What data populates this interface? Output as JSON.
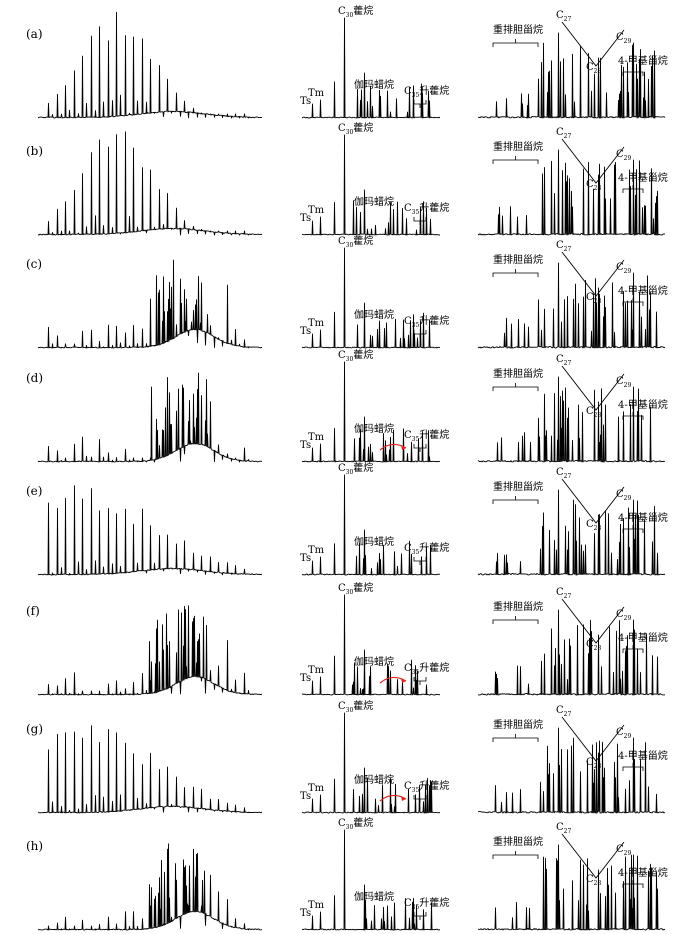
{
  "chart_data": {
    "type": "figure-grid",
    "rows": [
      {
        "label": "(a)",
        "panels": {
          "nalkane": {
            "type": "chromatogram"
          },
          "hopane": {
            "type": "chromatogram",
            "labels": {
              "main": "C30藿烷",
              "ts": "Ts",
              "tm": "Tm",
              "gam": "伽玛蜡烷",
              "homo": "C35升藿烷"
            }
          },
          "sterane": {
            "type": "chromatogram",
            "labels": {
              "dia": "重排胆甾烷",
              "c27": "C27",
              "c28": "C28",
              "c29": "C29",
              "me4": "4-甲基甾烷"
            }
          }
        }
      },
      {
        "label": "(b)",
        "panels": {
          "nalkane": {
            "type": "chromatogram"
          },
          "hopane": {
            "type": "chromatogram",
            "labels": {
              "main": "C30藿烷",
              "ts": "Ts",
              "tm": "Tm",
              "gam": "伽玛蜡烷",
              "homo": "C35升藿烷"
            }
          },
          "sterane": {
            "type": "chromatogram",
            "labels": {
              "dia": "重排胆甾烷",
              "c27": "C27",
              "c28": "C28",
              "c29": "C29",
              "me4": "4-甲基甾烷"
            }
          }
        }
      },
      {
        "label": "(c)",
        "panels": {
          "nalkane": {
            "type": "chromatogram"
          },
          "hopane": {
            "type": "chromatogram",
            "labels": {
              "main": "C30藿烷",
              "ts": "Ts",
              "tm": "Tm",
              "gam": "伽玛蜡烷",
              "homo": "C35升藿烷"
            }
          },
          "sterane": {
            "type": "chromatogram",
            "labels": {
              "dia": "重排胆甾烷",
              "c27": "C27",
              "c28": "C28",
              "c29": "C29",
              "me4": "4-甲基甾烷"
            }
          }
        }
      },
      {
        "label": "(d)",
        "panels": {
          "nalkane": {
            "type": "chromatogram"
          },
          "hopane": {
            "type": "chromatogram",
            "labels": {
              "main": "C30藿烷",
              "ts": "Ts",
              "tm": "Tm",
              "gam": "伽玛蜡烷",
              "homo": "C35升藿烷"
            }
          },
          "sterane": {
            "type": "chromatogram",
            "labels": {
              "dia": "重排胆甾烷",
              "c27": "C27",
              "c28": "C28",
              "c29": "C29",
              "me4": "4-甲基甾烷"
            }
          }
        }
      },
      {
        "label": "(e)",
        "panels": {
          "nalkane": {
            "type": "chromatogram"
          },
          "hopane": {
            "type": "chromatogram",
            "labels": {
              "main": "C30藿烷",
              "ts": "Ts",
              "tm": "Tm",
              "gam": "伽玛蜡烷",
              "homo": "C35升藿烷"
            }
          },
          "sterane": {
            "type": "chromatogram",
            "labels": {
              "dia": "重排胆甾烷",
              "c27": "C27",
              "c28": "C28",
              "c29": "C29",
              "me4": "4-甲基甾烷"
            }
          }
        }
      },
      {
        "label": "(f)",
        "panels": {
          "nalkane": {
            "type": "chromatogram"
          },
          "hopane": {
            "type": "chromatogram",
            "labels": {
              "main": "C30藿烷",
              "ts": "Ts",
              "tm": "Tm",
              "gam": "伽玛蜡烷",
              "homo": "C35升藿烷"
            }
          },
          "sterane": {
            "type": "chromatogram",
            "labels": {
              "dia": "重排胆甾烷",
              "c27": "C27",
              "c28": "C28",
              "c29": "C29",
              "me4": "4-甲基甾烷"
            }
          }
        }
      },
      {
        "label": "(g)",
        "panels": {
          "nalkane": {
            "type": "chromatogram"
          },
          "hopane": {
            "type": "chromatogram",
            "labels": {
              "main": "C30藿烷",
              "ts": "Ts",
              "tm": "Tm",
              "gam": "伽玛蜡烷",
              "homo": "C35升藿烷"
            }
          },
          "sterane": {
            "type": "chromatogram",
            "labels": {
              "dia": "重排胆甾烷",
              "c27": "C27",
              "c28": "C28",
              "c29": "C29",
              "me4": "4-甲基甾烷"
            }
          }
        }
      },
      {
        "label": "(h)",
        "panels": {
          "nalkane": {
            "type": "chromatogram"
          },
          "hopane": {
            "type": "chromatogram",
            "labels": {
              "main": "C30藿烷",
              "ts": "Ts",
              "tm": "Tm",
              "gam": "伽玛蜡烷",
              "homo": "C35升藿烷"
            }
          },
          "sterane": {
            "type": "chromatogram",
            "labels": {
              "dia": "重排胆甾烷",
              "c27": "C27",
              "c28": "C28",
              "c29": "C29",
              "me4": "4-甲基甾烷"
            }
          }
        }
      }
    ],
    "colors": {
      "trace": "#000000",
      "arrow": "#e0261b"
    }
  }
}
